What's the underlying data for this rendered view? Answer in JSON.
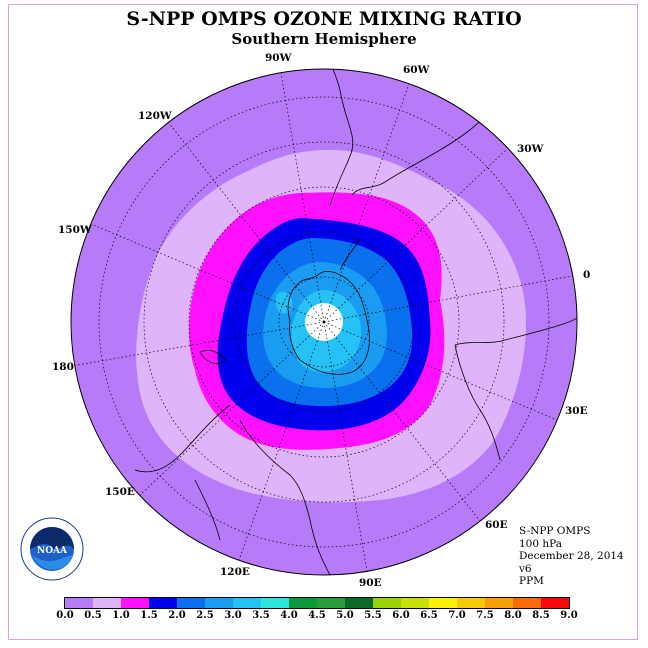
{
  "title": "S-NPP OMPS OZONE MIXING RATIO",
  "subtitle": "Southern Hemisphere",
  "longitude_labels": {
    "lon_90w": "90W",
    "lon_60w": "60W",
    "lon_120w": "120W",
    "lon_30w": "30W",
    "lon_150w": "150W",
    "lon_0": "0",
    "lon_180": "180",
    "lon_30e": "30E",
    "lon_150e": "150E",
    "lon_60e": "60E",
    "lon_120e": "120E",
    "lon_90e": "90E"
  },
  "info": {
    "instrument": "S-NPP OMPS",
    "level": "100 hPa",
    "date": "December 28, 2014",
    "version": "v6",
    "units": "PPM"
  },
  "logo_text": "NOAA",
  "colorbar": {
    "ticks": [
      "0.0",
      "0.5",
      "1.0",
      "1.5",
      "2.0",
      "2.5",
      "3.0",
      "3.5",
      "4.0",
      "4.5",
      "5.0",
      "5.5",
      "6.0",
      "6.5",
      "7.0",
      "7.5",
      "8.0",
      "8.5",
      "9.0"
    ],
    "colors": [
      "#b77af8",
      "#dfb4fb",
      "#ff10ff",
      "#0000ee",
      "#0a70ee",
      "#1a9cf2",
      "#27c2f5",
      "#2de6d8",
      "#0a9a3c",
      "#2a9d3c",
      "#0c6a28",
      "#9ad20a",
      "#c8e00a",
      "#f8f20a",
      "#f8c80a",
      "#f8a00a",
      "#f86a0a",
      "#f80a0a",
      "#8a5a40"
    ]
  },
  "colors": {
    "background_field": "#b77af8",
    "band_0_5": "#dfb4fb",
    "band_1_0": "#ff10ff",
    "band_1_5": "#0000ee",
    "band_2_0": "#0a70ee",
    "band_2_5": "#1a9cf2",
    "band_3_0": "#27c2f5",
    "missing": "#ffffff"
  }
}
